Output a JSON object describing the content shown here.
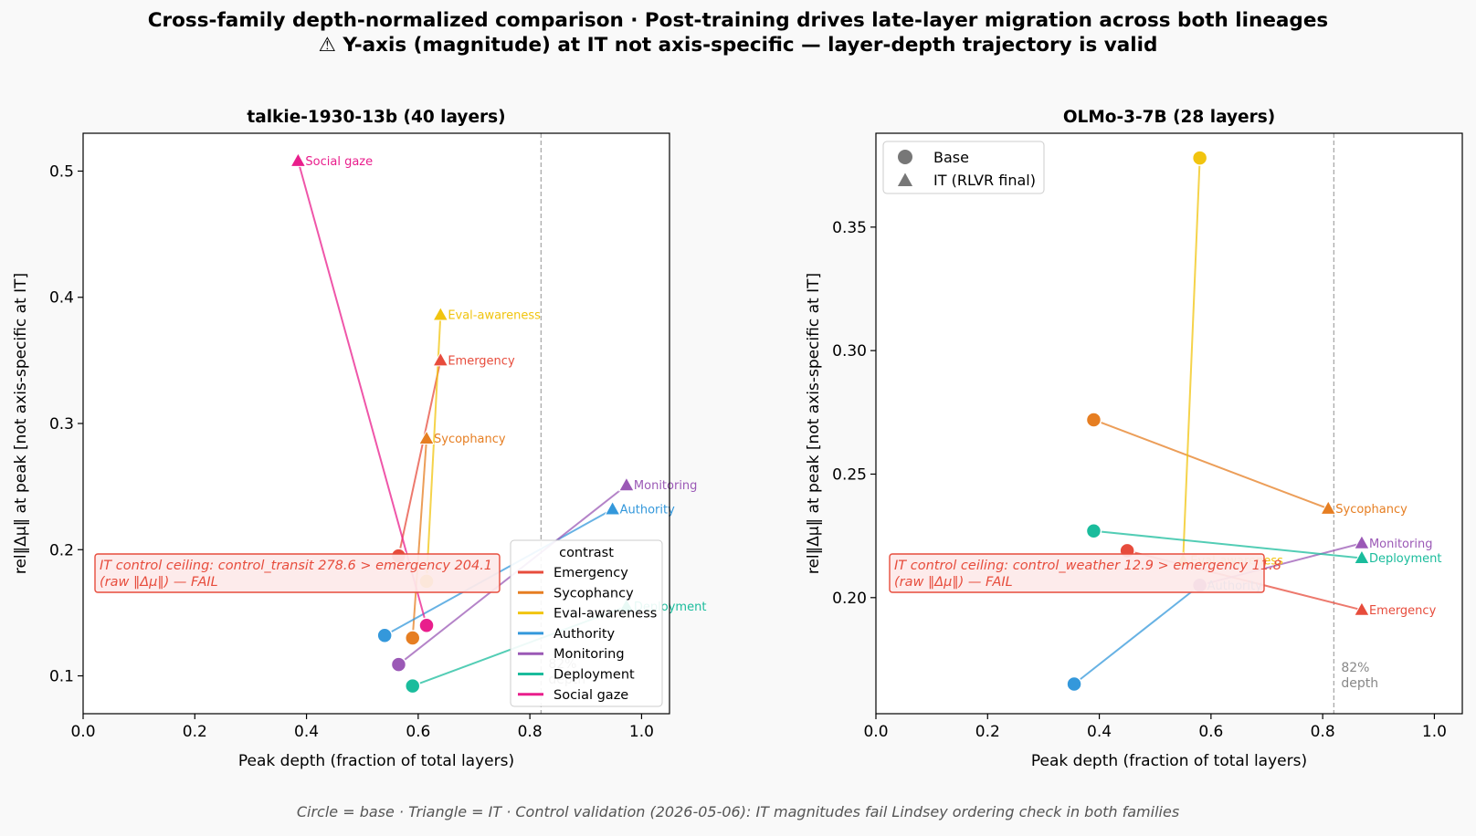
{
  "title_line1": "Cross-family depth-normalized comparison  ·  Post-training drives late-layer migration across both lineages",
  "title_line2": "⚠ Y-axis (magnitude) at IT not axis-specific — layer-depth trajectory is valid",
  "footnote": "Circle = base  ·  Triangle = IT  ·  Control validation (2026-05-06): IT magnitudes fail Lindsey ordering check in both families",
  "colors": {
    "Emergency": "#e74c3c",
    "Sycophancy": "#e67e22",
    "Eval-awareness": "#f1c40f",
    "Authority": "#3498db",
    "Monitoring": "#9b59b6",
    "Deployment": "#1abc9c",
    "Social gaze": "#e91e8c"
  },
  "chart_data": [
    {
      "type": "scatter",
      "title": "talkie-1930-13b  (40 layers)",
      "xlabel": "Peak depth (fraction of total layers)",
      "ylabel": "rel‖Δμ‖ at peak  [not axis-specific at IT]",
      "xlim": [
        0,
        1.05
      ],
      "ylim": [
        0.07,
        0.53
      ],
      "xticks": [
        0.0,
        0.2,
        0.4,
        0.6,
        0.8,
        1.0
      ],
      "yticks": [
        0.1,
        0.2,
        0.3,
        0.4,
        0.5
      ],
      "depth_line": {
        "x": 0.82,
        "label": "82%\ndepth"
      },
      "legend": {
        "title": "contrast",
        "position": "lower-right",
        "entries": [
          "Emergency",
          "Sycophancy",
          "Eval-awareness",
          "Authority",
          "Monitoring",
          "Deployment",
          "Social gaze"
        ]
      },
      "annotation": {
        "text_line1": "IT control ceiling: control_transit 278.6 > emergency 204.1",
        "text_line2": "(raw ‖Δμ‖) — FAIL"
      },
      "series": [
        {
          "name": "Emergency",
          "base": [
            0.565,
            0.195
          ],
          "it": [
            0.64,
            0.35
          ]
        },
        {
          "name": "Sycophancy",
          "base": [
            0.59,
            0.13
          ],
          "it": [
            0.615,
            0.288
          ]
        },
        {
          "name": "Eval-awareness",
          "base": [
            0.615,
            0.175
          ],
          "it": [
            0.64,
            0.386
          ]
        },
        {
          "name": "Authority",
          "base": [
            0.54,
            0.132
          ],
          "it": [
            0.948,
            0.232
          ]
        },
        {
          "name": "Monitoring",
          "base": [
            0.565,
            0.109
          ],
          "it": [
            0.973,
            0.251
          ]
        },
        {
          "name": "Deployment",
          "base": [
            0.59,
            0.092
          ],
          "it": [
            0.973,
            0.155
          ]
        },
        {
          "name": "Social gaze",
          "base": [
            0.615,
            0.14
          ],
          "it": [
            0.385,
            0.508
          ]
        }
      ]
    },
    {
      "type": "scatter",
      "title": "OLMo-3-7B  (28 layers)",
      "xlabel": "Peak depth (fraction of total layers)",
      "ylabel": "rel‖Δμ‖ at peak  [not axis-specific at IT]",
      "xlim": [
        0,
        1.05
      ],
      "ylim": [
        0.153,
        0.388
      ],
      "xticks": [
        0.0,
        0.2,
        0.4,
        0.6,
        0.8,
        1.0
      ],
      "yticks": [
        0.2,
        0.25,
        0.3,
        0.35
      ],
      "depth_line": {
        "x": 0.82,
        "label": "82%\ndepth"
      },
      "legend": {
        "position": "upper-left",
        "marker_entries": [
          {
            "marker": "circle",
            "label": "Base"
          },
          {
            "marker": "triangle",
            "label": "IT (RLVR final)"
          }
        ]
      },
      "annotation": {
        "text_line1": "IT control ceiling: control_weather 12.9 > emergency 11.8",
        "text_line2": "(raw ‖Δμ‖) — FAIL"
      },
      "series": [
        {
          "name": "Emergency",
          "base": [
            0.45,
            0.219
          ],
          "it": [
            0.87,
            0.195
          ]
        },
        {
          "name": "Sycophancy",
          "base": [
            0.39,
            0.272
          ],
          "it": [
            0.81,
            0.236
          ]
        },
        {
          "name": "Eval-awareness",
          "base": [
            0.58,
            0.378
          ],
          "it": [
            0.55,
            0.215
          ]
        },
        {
          "name": "Authority",
          "base": [
            0.355,
            0.165
          ],
          "it": [
            0.58,
            0.205
          ]
        },
        {
          "name": "Monitoring",
          "base": [
            0.58,
            0.205
          ],
          "it": [
            0.87,
            0.222
          ]
        },
        {
          "name": "Deployment",
          "base": [
            0.39,
            0.227
          ],
          "it": [
            0.87,
            0.216
          ]
        }
      ]
    }
  ]
}
